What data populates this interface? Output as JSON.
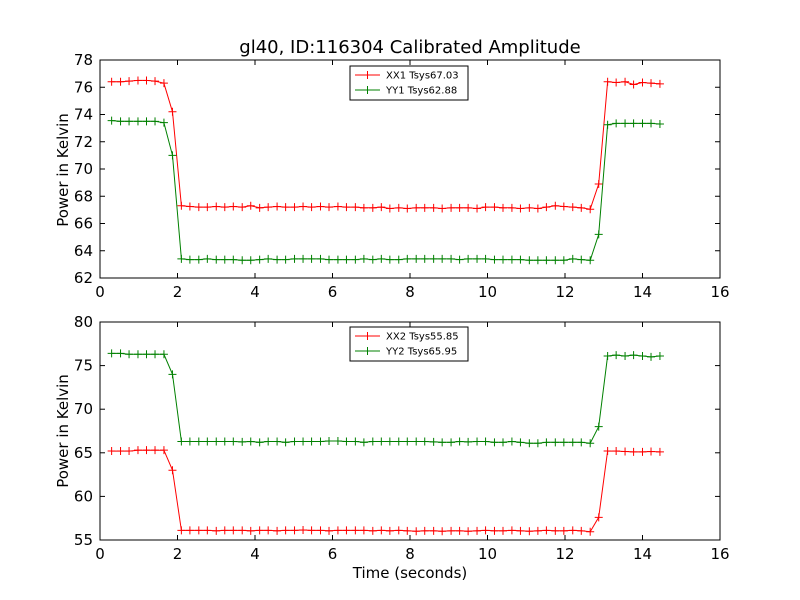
{
  "chart_data": [
    {
      "type": "line",
      "title": "gl40, ID:116304 Calibrated Amplitude",
      "xlabel": "",
      "ylabel": "Power in Kelvin",
      "xlim": [
        0,
        16
      ],
      "ylim": [
        62,
        78
      ],
      "xticks": [
        0,
        2,
        4,
        6,
        8,
        10,
        12,
        14,
        16
      ],
      "yticks": [
        62,
        64,
        66,
        68,
        70,
        72,
        74,
        76,
        78
      ],
      "legend_position": "top-center",
      "x": [
        0.3,
        0.53,
        0.75,
        0.98,
        1.2,
        1.42,
        1.65,
        1.87,
        2.1,
        2.32,
        2.55,
        2.77,
        3.0,
        3.22,
        3.44,
        3.67,
        3.89,
        4.12,
        4.34,
        4.57,
        4.79,
        5.02,
        5.24,
        5.46,
        5.69,
        5.91,
        6.14,
        6.36,
        6.59,
        6.81,
        7.04,
        7.26,
        7.48,
        7.71,
        7.93,
        8.16,
        8.38,
        8.61,
        8.83,
        9.06,
        9.28,
        9.5,
        9.73,
        9.95,
        10.18,
        10.4,
        10.63,
        10.85,
        11.08,
        11.3,
        11.52,
        11.75,
        11.97,
        12.2,
        12.42,
        12.65,
        12.87,
        13.1,
        13.32,
        13.55,
        13.77,
        14.0,
        14.22,
        14.45
      ],
      "series": [
        {
          "name": "XX1 Tsys67.03",
          "color": "#ff0000",
          "values": [
            76.4,
            76.4,
            76.45,
            76.5,
            76.5,
            76.45,
            76.3,
            74.2,
            67.3,
            67.25,
            67.2,
            67.2,
            67.25,
            67.2,
            67.25,
            67.2,
            67.3,
            67.15,
            67.2,
            67.25,
            67.2,
            67.2,
            67.25,
            67.2,
            67.25,
            67.2,
            67.25,
            67.2,
            67.2,
            67.15,
            67.15,
            67.2,
            67.1,
            67.15,
            67.1,
            67.15,
            67.15,
            67.15,
            67.1,
            67.15,
            67.15,
            67.15,
            67.1,
            67.2,
            67.2,
            67.15,
            67.15,
            67.1,
            67.15,
            67.1,
            67.2,
            67.3,
            67.25,
            67.2,
            67.15,
            67.05,
            68.9,
            76.4,
            76.35,
            76.4,
            76.2,
            76.35,
            76.3,
            76.25
          ]
        },
        {
          "name": "YY1 Tsys62.88",
          "color": "#008000",
          "values": [
            73.55,
            73.5,
            73.5,
            73.5,
            73.5,
            73.5,
            73.4,
            71.0,
            63.4,
            63.35,
            63.35,
            63.4,
            63.35,
            63.35,
            63.35,
            63.3,
            63.3,
            63.35,
            63.4,
            63.35,
            63.35,
            63.4,
            63.4,
            63.4,
            63.4,
            63.35,
            63.35,
            63.35,
            63.35,
            63.4,
            63.35,
            63.4,
            63.35,
            63.35,
            63.4,
            63.4,
            63.4,
            63.4,
            63.4,
            63.4,
            63.35,
            63.4,
            63.4,
            63.4,
            63.35,
            63.35,
            63.35,
            63.35,
            63.3,
            63.3,
            63.3,
            63.3,
            63.3,
            63.4,
            63.35,
            63.3,
            65.2,
            73.25,
            73.35,
            73.35,
            73.35,
            73.35,
            73.35,
            73.3
          ]
        }
      ]
    },
    {
      "type": "line",
      "title": "",
      "xlabel": "Time (seconds)",
      "ylabel": "Power in Kelvin",
      "xlim": [
        0,
        16
      ],
      "ylim": [
        55,
        80
      ],
      "xticks": [
        0,
        2,
        4,
        6,
        8,
        10,
        12,
        14,
        16
      ],
      "yticks": [
        55,
        60,
        65,
        70,
        75,
        80
      ],
      "legend_position": "top-center",
      "x": [
        0.3,
        0.53,
        0.75,
        0.98,
        1.2,
        1.42,
        1.65,
        1.87,
        2.1,
        2.32,
        2.55,
        2.77,
        3.0,
        3.22,
        3.44,
        3.67,
        3.89,
        4.12,
        4.34,
        4.57,
        4.79,
        5.02,
        5.24,
        5.46,
        5.69,
        5.91,
        6.14,
        6.36,
        6.59,
        6.81,
        7.04,
        7.26,
        7.48,
        7.71,
        7.93,
        8.16,
        8.38,
        8.61,
        8.83,
        9.06,
        9.28,
        9.5,
        9.73,
        9.95,
        10.18,
        10.4,
        10.63,
        10.85,
        11.08,
        11.3,
        11.52,
        11.75,
        11.97,
        12.2,
        12.42,
        12.65,
        12.87,
        13.1,
        13.32,
        13.55,
        13.77,
        14.0,
        14.22,
        14.45
      ],
      "series": [
        {
          "name": "XX2 Tsys55.85",
          "color": "#ff0000",
          "values": [
            65.2,
            65.2,
            65.2,
            65.3,
            65.3,
            65.3,
            65.3,
            63.0,
            56.1,
            56.1,
            56.1,
            56.1,
            56.05,
            56.1,
            56.1,
            56.1,
            56.05,
            56.1,
            56.1,
            56.05,
            56.1,
            56.1,
            56.15,
            56.1,
            56.1,
            56.05,
            56.1,
            56.1,
            56.1,
            56.1,
            56.05,
            56.1,
            56.05,
            56.1,
            56.05,
            56.0,
            56.05,
            56.05,
            56.0,
            56.05,
            56.05,
            56.0,
            56.05,
            56.1,
            56.05,
            56.05,
            56.1,
            56.05,
            56.0,
            56.05,
            56.1,
            56.05,
            56.05,
            56.1,
            56.05,
            55.95,
            57.6,
            65.2,
            65.2,
            65.15,
            65.1,
            65.1,
            65.15,
            65.1
          ]
        },
        {
          "name": "YY2 Tsys65.95",
          "color": "#008000",
          "values": [
            76.4,
            76.4,
            76.3,
            76.3,
            76.3,
            76.3,
            76.3,
            74.0,
            66.3,
            66.3,
            66.3,
            66.3,
            66.3,
            66.3,
            66.3,
            66.25,
            66.3,
            66.2,
            66.3,
            66.3,
            66.2,
            66.3,
            66.3,
            66.3,
            66.3,
            66.35,
            66.35,
            66.3,
            66.3,
            66.2,
            66.3,
            66.3,
            66.3,
            66.3,
            66.3,
            66.3,
            66.3,
            66.25,
            66.2,
            66.2,
            66.3,
            66.25,
            66.3,
            66.3,
            66.2,
            66.2,
            66.3,
            66.2,
            66.1,
            66.1,
            66.2,
            66.2,
            66.2,
            66.2,
            66.2,
            66.1,
            68.0,
            76.1,
            76.2,
            76.1,
            76.2,
            76.1,
            76.0,
            76.1
          ]
        }
      ]
    }
  ]
}
